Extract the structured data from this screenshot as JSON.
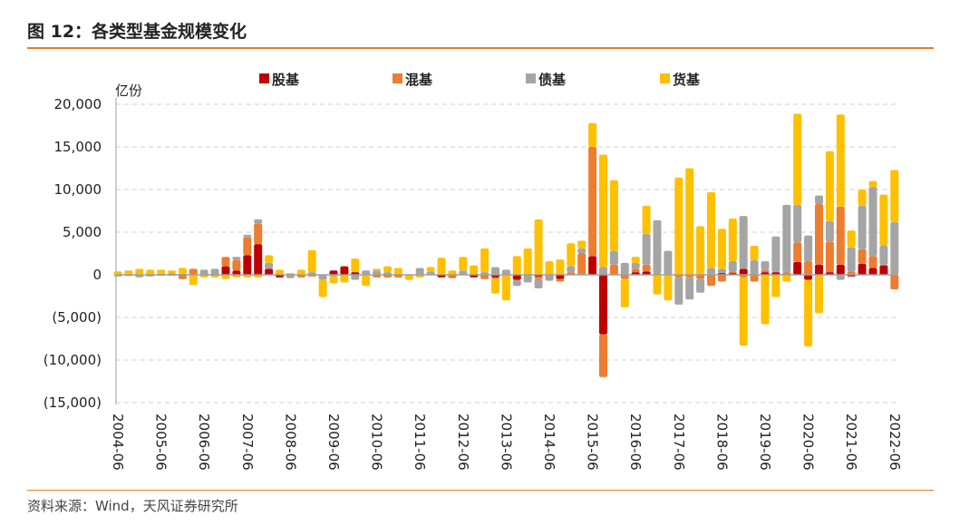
{
  "title": "图 12：各类型基金规模变化",
  "source": "资料来源：Wind，天风证券研究所",
  "chart_data": {
    "type": "bar",
    "stacked": true,
    "ylabel": "亿份",
    "ylim": [
      -15000,
      20000
    ],
    "yticks": [
      20000,
      15000,
      10000,
      5000,
      0,
      -5000,
      -10000,
      -15000
    ],
    "ytick_labels": [
      "20,000",
      "15,000",
      "10,000",
      "5,000",
      "0",
      "(5,000)",
      "(10,000)",
      "(15,000)"
    ],
    "xtick_labels": [
      "2004-06",
      "2005-06",
      "2006-06",
      "2007-06",
      "2008-06",
      "2009-06",
      "2010-06",
      "2011-06",
      "2012-06",
      "2013-06",
      "2014-06",
      "2015-06",
      "2016-06",
      "2017-06",
      "2018-06",
      "2019-06",
      "2020-06",
      "2021-06",
      "2022-06"
    ],
    "legend_position": "top",
    "grid": true,
    "series": [
      {
        "name": "股基",
        "color": "#c00000",
        "values": [
          0,
          0,
          0,
          0,
          0,
          0,
          0,
          0,
          0,
          0,
          1000,
          500,
          2300,
          3600,
          700,
          -300,
          0,
          0,
          0,
          0,
          500,
          1000,
          300,
          0,
          0,
          0,
          0,
          0,
          0,
          0,
          -300,
          0,
          0,
          -300,
          0,
          -300,
          0,
          -600,
          0,
          -200,
          0,
          -500,
          0,
          0,
          2200,
          -7000,
          0,
          0,
          300,
          400,
          0,
          0,
          0,
          0,
          0,
          0,
          200,
          200,
          700,
          0,
          300,
          300,
          0,
          1500,
          -600,
          1200,
          300,
          1200,
          -200,
          1300,
          800,
          1100,
          0
        ]
      },
      {
        "name": "混基",
        "color": "#ed7d31",
        "values": [
          0,
          0,
          0,
          0,
          -100,
          -100,
          -500,
          700,
          0,
          0,
          1100,
          1200,
          2100,
          2400,
          0,
          0,
          0,
          -300,
          -200,
          0,
          0,
          0,
          0,
          0,
          -300,
          -300,
          -300,
          0,
          0,
          0,
          0,
          -400,
          0,
          0,
          -500,
          -200,
          0,
          0,
          0,
          -300,
          0,
          -300,
          300,
          2500,
          12800,
          -5000,
          1200,
          -500,
          400,
          800,
          200,
          0,
          -300,
          -300,
          -500,
          -1300,
          -800,
          200,
          -300,
          -800,
          300,
          100,
          300,
          2300,
          1600,
          7100,
          3600,
          6800,
          400,
          1700,
          1400,
          100,
          -1700
        ]
      },
      {
        "name": "债基",
        "color": "#a5a5a5",
        "values": [
          -200,
          -150,
          -300,
          -200,
          100,
          200,
          100,
          0,
          600,
          700,
          0,
          400,
          300,
          500,
          700,
          0,
          -400,
          0,
          300,
          -600,
          -200,
          0,
          -600,
          500,
          500,
          300,
          0,
          0,
          800,
          400,
          0,
          0,
          500,
          0,
          300,
          900,
          600,
          -700,
          -900,
          -1100,
          -700,
          0,
          700,
          600,
          0,
          900,
          1600,
          1400,
          700,
          3600,
          6200,
          2800,
          -3200,
          -2600,
          -1600,
          800,
          500,
          1200,
          6200,
          1700,
          1000,
          4100,
          7900,
          4400,
          3000,
          1000,
          2400,
          -600,
          2800,
          5100,
          8100,
          2200,
          6200
        ]
      },
      {
        "name": "货基",
        "color": "#ffc000",
        "values": [
          400,
          500,
          700,
          600,
          500,
          300,
          700,
          -1200,
          -300,
          -300,
          -500,
          -300,
          -300,
          -300,
          900,
          600,
          200,
          600,
          2600,
          -2000,
          -800,
          -900,
          1600,
          -1300,
          200,
          700,
          800,
          -600,
          -300,
          500,
          2000,
          500,
          1600,
          1100,
          2800,
          -1700,
          -3000,
          2200,
          3100,
          6500,
          1600,
          1800,
          2700,
          900,
          2800,
          13200,
          8300,
          -3300,
          700,
          3300,
          -2300,
          -3000,
          11400,
          12500,
          5700,
          8900,
          4700,
          5000,
          -8000,
          1700,
          -5800,
          -2600,
          -800,
          10700,
          -7800,
          -4500,
          8200,
          10800,
          2000,
          1900,
          700,
          6000,
          6100
        ]
      }
    ]
  }
}
